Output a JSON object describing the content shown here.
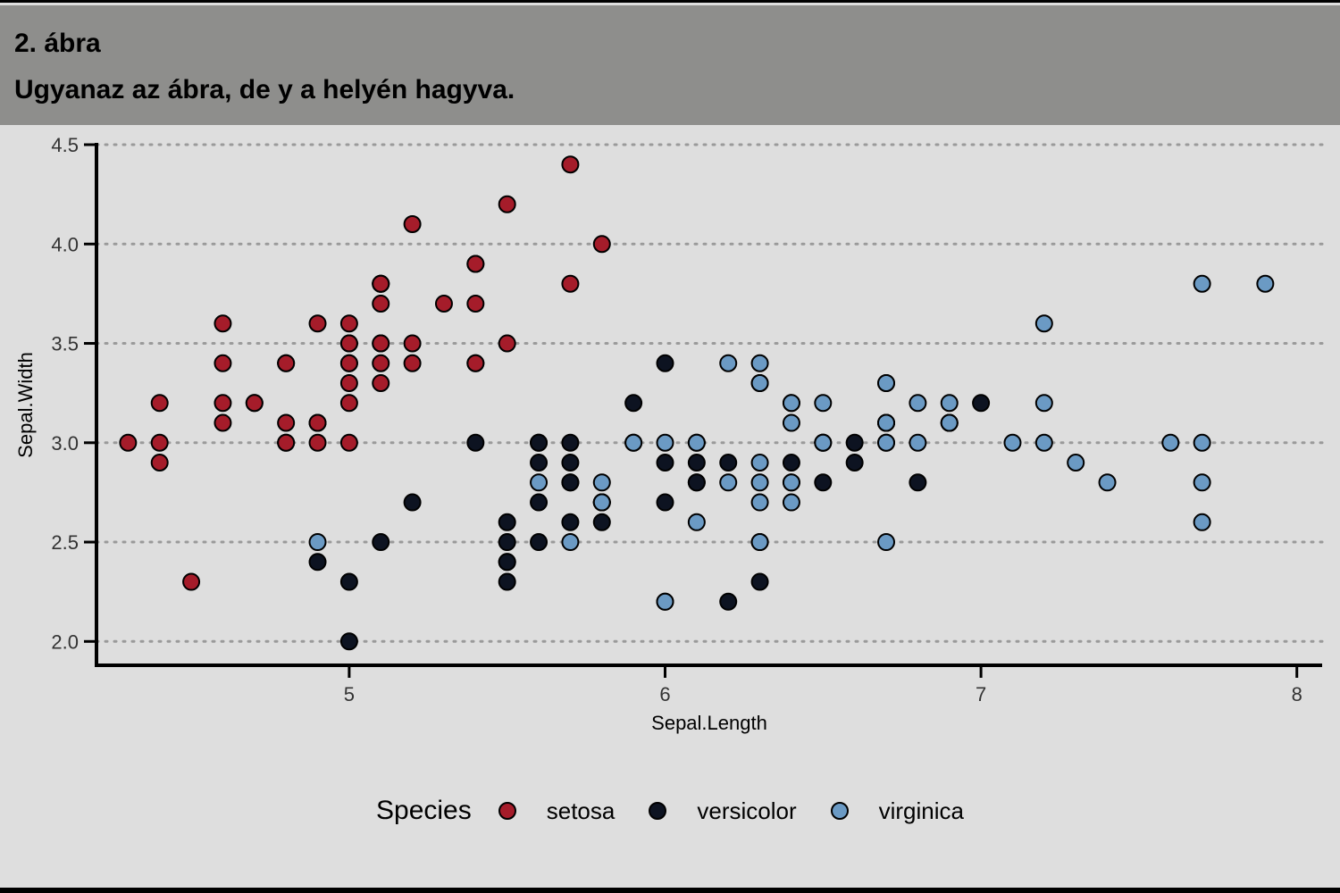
{
  "header": {
    "title": "2. ábra",
    "subtitle": "Ugyanaz az ábra, de y a helyén hagyva."
  },
  "colors": {
    "setosa": "#a51c2a",
    "versicolor": "#0d1321",
    "virginica": "#6b9ac4",
    "gridline": "#9a9a9a",
    "axis": "#000000"
  },
  "chart_data": {
    "type": "scatter",
    "xlabel": "Sepal.Length",
    "ylabel": "Sepal.Width",
    "xlim": [
      4.2,
      8.08
    ],
    "ylim": [
      1.88,
      4.5
    ],
    "x_ticks": [
      5,
      6,
      7,
      8
    ],
    "y_ticks": [
      2.0,
      2.5,
      3.0,
      3.5,
      4.0,
      4.5
    ],
    "x_tick_labels": [
      "5",
      "6",
      "7",
      "8"
    ],
    "y_tick_labels": [
      "2.0",
      "2.5",
      "3.0",
      "3.5",
      "4.0",
      "4.5"
    ],
    "grid": "horizontal-dotted",
    "legend": {
      "title": "Species",
      "position": "bottom"
    },
    "series": [
      {
        "name": "setosa",
        "points": [
          [
            5.1,
            3.5
          ],
          [
            4.9,
            3.0
          ],
          [
            4.7,
            3.2
          ],
          [
            4.6,
            3.1
          ],
          [
            5.0,
            3.6
          ],
          [
            5.4,
            3.9
          ],
          [
            4.6,
            3.4
          ],
          [
            5.0,
            3.4
          ],
          [
            4.4,
            2.9
          ],
          [
            4.9,
            3.1
          ],
          [
            5.4,
            3.7
          ],
          [
            4.8,
            3.4
          ],
          [
            4.8,
            3.0
          ],
          [
            4.3,
            3.0
          ],
          [
            5.8,
            4.0
          ],
          [
            5.7,
            4.4
          ],
          [
            5.4,
            3.9
          ],
          [
            5.1,
            3.5
          ],
          [
            5.7,
            3.8
          ],
          [
            5.1,
            3.8
          ],
          [
            5.4,
            3.4
          ],
          [
            5.1,
            3.7
          ],
          [
            4.6,
            3.6
          ],
          [
            5.1,
            3.3
          ],
          [
            4.8,
            3.4
          ],
          [
            5.0,
            3.0
          ],
          [
            5.0,
            3.4
          ],
          [
            5.2,
            3.5
          ],
          [
            5.2,
            3.4
          ],
          [
            4.7,
            3.2
          ],
          [
            4.8,
            3.1
          ],
          [
            5.4,
            3.4
          ],
          [
            5.2,
            4.1
          ],
          [
            5.5,
            4.2
          ],
          [
            4.9,
            3.1
          ],
          [
            5.0,
            3.2
          ],
          [
            5.5,
            3.5
          ],
          [
            4.9,
            3.6
          ],
          [
            4.4,
            3.0
          ],
          [
            5.1,
            3.4
          ],
          [
            5.0,
            3.5
          ],
          [
            4.5,
            2.3
          ],
          [
            4.4,
            3.2
          ],
          [
            5.0,
            3.5
          ],
          [
            5.1,
            3.8
          ],
          [
            4.8,
            3.0
          ],
          [
            5.1,
            3.8
          ],
          [
            4.6,
            3.2
          ],
          [
            5.3,
            3.7
          ],
          [
            5.0,
            3.3
          ]
        ]
      },
      {
        "name": "versicolor",
        "points": [
          [
            7.0,
            3.2
          ],
          [
            6.4,
            3.2
          ],
          [
            6.9,
            3.1
          ],
          [
            5.5,
            2.3
          ],
          [
            6.5,
            2.8
          ],
          [
            5.7,
            2.8
          ],
          [
            6.3,
            3.3
          ],
          [
            4.9,
            2.4
          ],
          [
            6.6,
            2.9
          ],
          [
            5.2,
            2.7
          ],
          [
            5.0,
            2.0
          ],
          [
            5.9,
            3.0
          ],
          [
            6.0,
            2.2
          ],
          [
            6.1,
            2.9
          ],
          [
            5.6,
            2.9
          ],
          [
            6.7,
            3.1
          ],
          [
            5.6,
            3.0
          ],
          [
            5.8,
            2.7
          ],
          [
            6.2,
            2.2
          ],
          [
            5.6,
            2.5
          ],
          [
            5.9,
            3.2
          ],
          [
            6.1,
            2.8
          ],
          [
            6.3,
            2.5
          ],
          [
            6.1,
            2.8
          ],
          [
            6.4,
            2.9
          ],
          [
            6.6,
            3.0
          ],
          [
            6.8,
            2.8
          ],
          [
            6.7,
            3.0
          ],
          [
            6.0,
            2.9
          ],
          [
            5.7,
            2.6
          ],
          [
            5.5,
            2.4
          ],
          [
            5.5,
            2.4
          ],
          [
            5.8,
            2.7
          ],
          [
            6.0,
            2.7
          ],
          [
            5.4,
            3.0
          ],
          [
            6.0,
            3.4
          ],
          [
            6.7,
            3.1
          ],
          [
            6.3,
            2.3
          ],
          [
            5.6,
            3.0
          ],
          [
            5.5,
            2.5
          ],
          [
            5.5,
            2.6
          ],
          [
            6.1,
            3.0
          ],
          [
            5.8,
            2.6
          ],
          [
            5.0,
            2.3
          ],
          [
            5.6,
            2.7
          ],
          [
            5.7,
            3.0
          ],
          [
            5.7,
            2.9
          ],
          [
            6.2,
            2.9
          ],
          [
            5.1,
            2.5
          ],
          [
            5.7,
            2.8
          ]
        ]
      },
      {
        "name": "virginica",
        "points": [
          [
            6.3,
            3.3
          ],
          [
            5.8,
            2.7
          ],
          [
            7.1,
            3.0
          ],
          [
            6.3,
            2.9
          ],
          [
            6.5,
            3.0
          ],
          [
            7.6,
            3.0
          ],
          [
            4.9,
            2.5
          ],
          [
            7.3,
            2.9
          ],
          [
            6.7,
            2.5
          ],
          [
            7.2,
            3.6
          ],
          [
            6.5,
            3.2
          ],
          [
            6.4,
            2.7
          ],
          [
            6.8,
            3.0
          ],
          [
            5.7,
            2.5
          ],
          [
            5.8,
            2.8
          ],
          [
            6.4,
            3.2
          ],
          [
            6.5,
            3.0
          ],
          [
            7.7,
            3.8
          ],
          [
            7.7,
            2.6
          ],
          [
            6.0,
            2.2
          ],
          [
            6.9,
            3.2
          ],
          [
            5.6,
            2.8
          ],
          [
            7.7,
            2.8
          ],
          [
            6.3,
            2.7
          ],
          [
            6.7,
            3.3
          ],
          [
            7.2,
            3.2
          ],
          [
            6.2,
            2.8
          ],
          [
            6.1,
            3.0
          ],
          [
            6.4,
            2.8
          ],
          [
            7.2,
            3.0
          ],
          [
            7.4,
            2.8
          ],
          [
            7.9,
            3.8
          ],
          [
            6.4,
            2.8
          ],
          [
            6.3,
            2.8
          ],
          [
            6.1,
            2.6
          ],
          [
            7.7,
            3.0
          ],
          [
            6.3,
            3.4
          ],
          [
            6.4,
            3.1
          ],
          [
            6.0,
            3.0
          ],
          [
            6.9,
            3.1
          ],
          [
            6.7,
            3.1
          ],
          [
            6.9,
            3.1
          ],
          [
            5.8,
            2.7
          ],
          [
            6.8,
            3.2
          ],
          [
            6.7,
            3.3
          ],
          [
            6.7,
            3.0
          ],
          [
            6.3,
            2.5
          ],
          [
            6.5,
            3.0
          ],
          [
            6.2,
            3.4
          ],
          [
            5.9,
            3.0
          ]
        ]
      }
    ]
  }
}
